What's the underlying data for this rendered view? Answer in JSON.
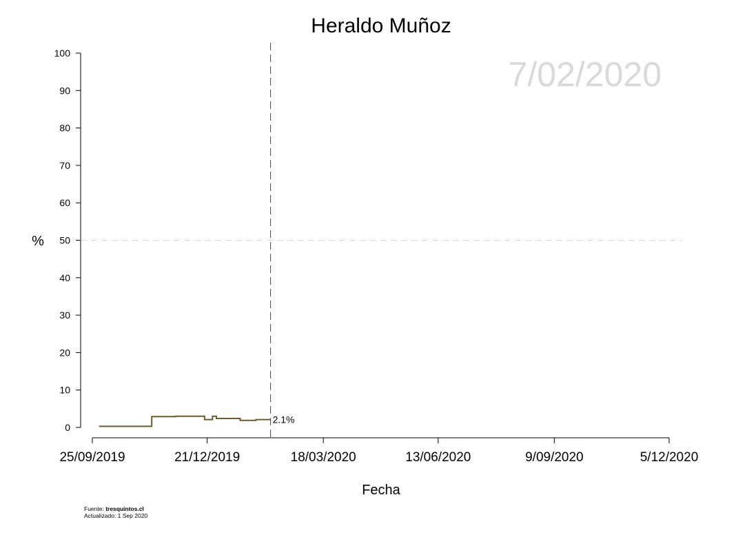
{
  "chart_data": {
    "type": "line",
    "title": "Heraldo Muñoz",
    "date_overlay": "7/02/2020",
    "xlabel": "Fecha",
    "ylabel": "%",
    "ylim": [
      0,
      100
    ],
    "yticks": [
      0,
      10,
      20,
      30,
      40,
      50,
      60,
      70,
      80,
      90,
      100
    ],
    "xlim": [
      "2019-09-25",
      "2020-12-05"
    ],
    "xticks": [
      {
        "date": "2019-09-25",
        "label": "25/09/2019"
      },
      {
        "date": "2019-12-21",
        "label": "21/12/2019"
      },
      {
        "date": "2020-03-18",
        "label": "18/03/2020"
      },
      {
        "date": "2020-06-13",
        "label": "13/06/2020"
      },
      {
        "date": "2020-09-09",
        "label": "9/09/2020"
      },
      {
        "date": "2020-12-05",
        "label": "5/12/2020"
      }
    ],
    "reference_line_y": 50,
    "current_date_line": "2020-02-07",
    "series": [
      {
        "color": "#6b5a2a",
        "step": true,
        "points": [
          {
            "x": "2019-09-30",
            "y": 0.3
          },
          {
            "x": "2019-11-09",
            "y": 2.9
          },
          {
            "x": "2019-11-27",
            "y": 3.0
          },
          {
            "x": "2019-12-19",
            "y": 2.1
          },
          {
            "x": "2019-12-25",
            "y": 3.0
          },
          {
            "x": "2019-12-28",
            "y": 2.4
          },
          {
            "x": "2020-01-15",
            "y": 1.9
          },
          {
            "x": "2020-01-27",
            "y": 2.1
          },
          {
            "x": "2020-02-07",
            "y": 2.1
          }
        ],
        "end_label": "2.1%"
      }
    ]
  },
  "footer": {
    "source_prefix": "Fuente: ",
    "source_name": "tresquintos.cl",
    "updated": "Actualizado: 1 Sep 2020"
  }
}
